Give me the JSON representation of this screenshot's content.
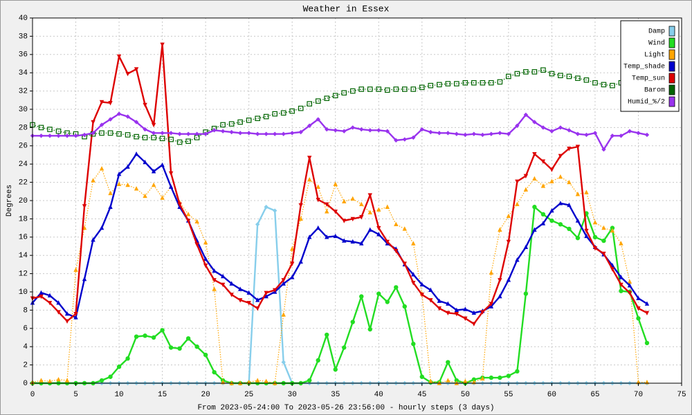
{
  "chart_data": {
    "type": "line",
    "title": "Weather in Essex",
    "y_label": "Degrees",
    "x_label": "From 2023-05-24:00 To 2023-05-26 23:56:00 - hourly steps (3 days)",
    "xlim": [
      0,
      75
    ],
    "xticks": [
      0,
      5,
      10,
      15,
      20,
      25,
      30,
      35,
      40,
      45,
      50,
      55,
      60,
      65,
      70,
      75
    ],
    "ylim": [
      0,
      40
    ],
    "yticks": [
      0,
      2,
      4,
      6,
      8,
      10,
      12,
      14,
      16,
      18,
      20,
      22,
      24,
      26,
      28,
      30,
      32,
      34,
      36,
      38,
      40
    ],
    "grid": true,
    "legend": "top-right",
    "x": [
      0,
      1,
      2,
      3,
      4,
      5,
      6,
      7,
      8,
      9,
      10,
      11,
      12,
      13,
      14,
      15,
      16,
      17,
      18,
      19,
      20,
      21,
      22,
      23,
      24,
      25,
      26,
      27,
      28,
      29,
      30,
      31,
      32,
      33,
      34,
      35,
      36,
      37,
      38,
      39,
      40,
      41,
      42,
      43,
      44,
      45,
      46,
      47,
      48,
      49,
      50,
      51,
      52,
      53,
      54,
      55,
      56,
      57,
      58,
      59,
      60,
      61,
      62,
      63,
      64,
      65,
      66,
      67,
      68,
      69,
      70,
      71
    ],
    "series": [
      {
        "name": "Damp",
        "color": "#87ceeb",
        "marker": "diamond",
        "line": "solid",
        "values": [
          0,
          0,
          0,
          0,
          0,
          0,
          0,
          0,
          0,
          0,
          0,
          0,
          0,
          0,
          0,
          0,
          0,
          0,
          0,
          0,
          0,
          0,
          0,
          0,
          0,
          0,
          17.4,
          19.3,
          18.9,
          2.3,
          0,
          0,
          0,
          0,
          0,
          0,
          0,
          0,
          0,
          0,
          0,
          0,
          0,
          0,
          0,
          0,
          0,
          0,
          0,
          0,
          0,
          0,
          0,
          0,
          0,
          0,
          0,
          0,
          0,
          0,
          0,
          0,
          0,
          0,
          0,
          0,
          0,
          0,
          0,
          0,
          0,
          0
        ]
      },
      {
        "name": "Wind",
        "color": "#22dd22",
        "marker": "circle",
        "line": "solid",
        "values": [
          0,
          0,
          0,
          0,
          0,
          0,
          0,
          0,
          0.3,
          0.7,
          1.8,
          2.7,
          5.1,
          5.2,
          5.0,
          5.8,
          3.9,
          3.8,
          4.9,
          4.0,
          3.1,
          1.2,
          0.3,
          0,
          0,
          0,
          0,
          0,
          0,
          0,
          0,
          0,
          0.3,
          2.5,
          5.3,
          1.5,
          3.9,
          6.7,
          9.5,
          5.9,
          9.8,
          8.9,
          10.5,
          8.4,
          4.3,
          0.7,
          0.1,
          0.1,
          2.3,
          0.3,
          0,
          0.4,
          0.6,
          0.6,
          0.6,
          0.8,
          1.3,
          9.8,
          19.3,
          18.5,
          17.8,
          17.4,
          16.9,
          15.9,
          18.6,
          16.0,
          15.6,
          17.0,
          10.1,
          10.0,
          7.1,
          4.4
        ]
      },
      {
        "name": "Light",
        "color": "#ffa500",
        "marker": "triangle-up",
        "line": "dotted",
        "values": [
          0.1,
          0.3,
          0.2,
          0.4,
          0.3,
          12.4,
          17.0,
          22.2,
          23.5,
          20.8,
          21.8,
          21.7,
          21.3,
          20.5,
          21.7,
          20.3,
          21.5,
          19.8,
          18.5,
          17.7,
          15.4,
          10.3,
          0.1,
          0,
          0,
          0.1,
          0.3,
          0.2,
          0,
          7.5,
          14.7,
          18.0,
          22.3,
          21.5,
          18.8,
          21.8,
          19.9,
          20.2,
          19.6,
          18.7,
          19.0,
          19.3,
          17.4,
          16.9,
          15.3,
          9.8,
          0.2,
          0,
          0.3,
          0,
          0.2,
          0.1,
          0.5,
          12.1,
          16.8,
          18.3,
          19.6,
          21.2,
          22.4,
          21.6,
          22.1,
          22.6,
          22.0,
          20.7,
          20.9,
          17.6,
          17.0,
          16.7,
          15.3,
          11.1,
          0.1,
          0.1
        ]
      },
      {
        "name": "Temp_shade",
        "color": "#0000cc",
        "marker": "triangle-up",
        "line": "solid",
        "values": [
          8.8,
          9.9,
          9.6,
          8.8,
          7.6,
          7.2,
          11.4,
          15.7,
          17.0,
          19.3,
          22.9,
          23.7,
          25.1,
          24.2,
          23.2,
          23.9,
          21.5,
          19.3,
          17.8,
          15.6,
          13.6,
          12.3,
          11.7,
          10.9,
          10.3,
          9.9,
          9.1,
          9.5,
          10.0,
          10.9,
          11.6,
          13.3,
          16.0,
          17.0,
          16.0,
          16.1,
          15.6,
          15.5,
          15.3,
          16.8,
          16.3,
          15.3,
          14.7,
          13.0,
          11.9,
          10.8,
          10.2,
          9.0,
          8.7,
          8.0,
          8.1,
          7.7,
          7.9,
          8.4,
          9.5,
          11.3,
          13.5,
          14.9,
          16.8,
          17.5,
          18.9,
          19.7,
          19.5,
          17.8,
          16.1,
          14.9,
          14.1,
          12.9,
          11.6,
          10.7,
          9.3,
          8.7
        ]
      },
      {
        "name": "Temp_sun",
        "color": "#dd0000",
        "marker": "triangle-down",
        "line": "solid",
        "values": [
          9.3,
          9.5,
          8.8,
          7.8,
          6.8,
          7.6,
          19.4,
          28.6,
          30.8,
          30.7,
          35.8,
          33.9,
          34.4,
          30.5,
          28.3,
          37.1,
          23.0,
          19.6,
          17.8,
          15.2,
          12.9,
          11.3,
          10.8,
          9.7,
          9.1,
          8.8,
          8.2,
          9.9,
          10.2,
          11.3,
          13.1,
          19.5,
          24.7,
          20.1,
          19.6,
          18.8,
          17.8,
          18.0,
          18.2,
          20.6,
          17.0,
          15.5,
          14.5,
          13.1,
          11.0,
          9.7,
          9.1,
          8.2,
          7.7,
          7.6,
          7.1,
          6.5,
          7.8,
          8.7,
          11.3,
          15.5,
          22.1,
          22.7,
          25.1,
          24.3,
          23.4,
          24.9,
          25.7,
          25.9,
          16.7,
          14.8,
          14.2,
          12.5,
          10.8,
          9.9,
          8.2,
          7.7
        ]
      },
      {
        "name": "Barom",
        "color": "#006400",
        "marker": "square",
        "line": "dotted",
        "values": [
          28.3,
          28.0,
          27.8,
          27.6,
          27.4,
          27.3,
          27.0,
          27.3,
          27.4,
          27.4,
          27.3,
          27.2,
          27.0,
          26.9,
          26.9,
          26.8,
          26.7,
          26.4,
          26.5,
          26.9,
          27.5,
          27.9,
          28.3,
          28.4,
          28.6,
          28.8,
          29.0,
          29.2,
          29.5,
          29.6,
          29.8,
          30.1,
          30.6,
          30.9,
          31.2,
          31.5,
          31.8,
          32.0,
          32.2,
          32.2,
          32.2,
          32.1,
          32.2,
          32.2,
          32.2,
          32.4,
          32.6,
          32.7,
          32.8,
          32.8,
          32.9,
          32.9,
          32.9,
          32.9,
          33.0,
          33.6,
          33.9,
          34.1,
          34.1,
          34.3,
          33.9,
          33.7,
          33.6,
          33.4,
          33.2,
          32.9,
          32.7,
          32.6,
          32.9,
          33.0,
          33.1,
          33.1
        ]
      },
      {
        "name": "Humid_%/2",
        "color": "#9933ee",
        "marker": "diamond",
        "line": "solid",
        "values": [
          27.1,
          27.1,
          27.1,
          27.1,
          27.1,
          27.1,
          27.2,
          27.4,
          28.3,
          28.9,
          29.5,
          29.2,
          28.6,
          27.8,
          27.4,
          27.4,
          27.4,
          27.3,
          27.3,
          27.3,
          27.3,
          27.7,
          27.6,
          27.5,
          27.4,
          27.4,
          27.3,
          27.3,
          27.3,
          27.3,
          27.4,
          27.5,
          28.2,
          28.9,
          27.8,
          27.7,
          27.6,
          28.0,
          27.8,
          27.7,
          27.7,
          27.6,
          26.6,
          26.7,
          26.9,
          27.8,
          27.5,
          27.4,
          27.4,
          27.3,
          27.2,
          27.3,
          27.2,
          27.3,
          27.4,
          27.3,
          28.2,
          29.4,
          28.6,
          28.0,
          27.6,
          28.0,
          27.7,
          27.3,
          27.2,
          27.4,
          25.6,
          27.1,
          27.1,
          27.6,
          27.4,
          27.2
        ]
      }
    ]
  }
}
